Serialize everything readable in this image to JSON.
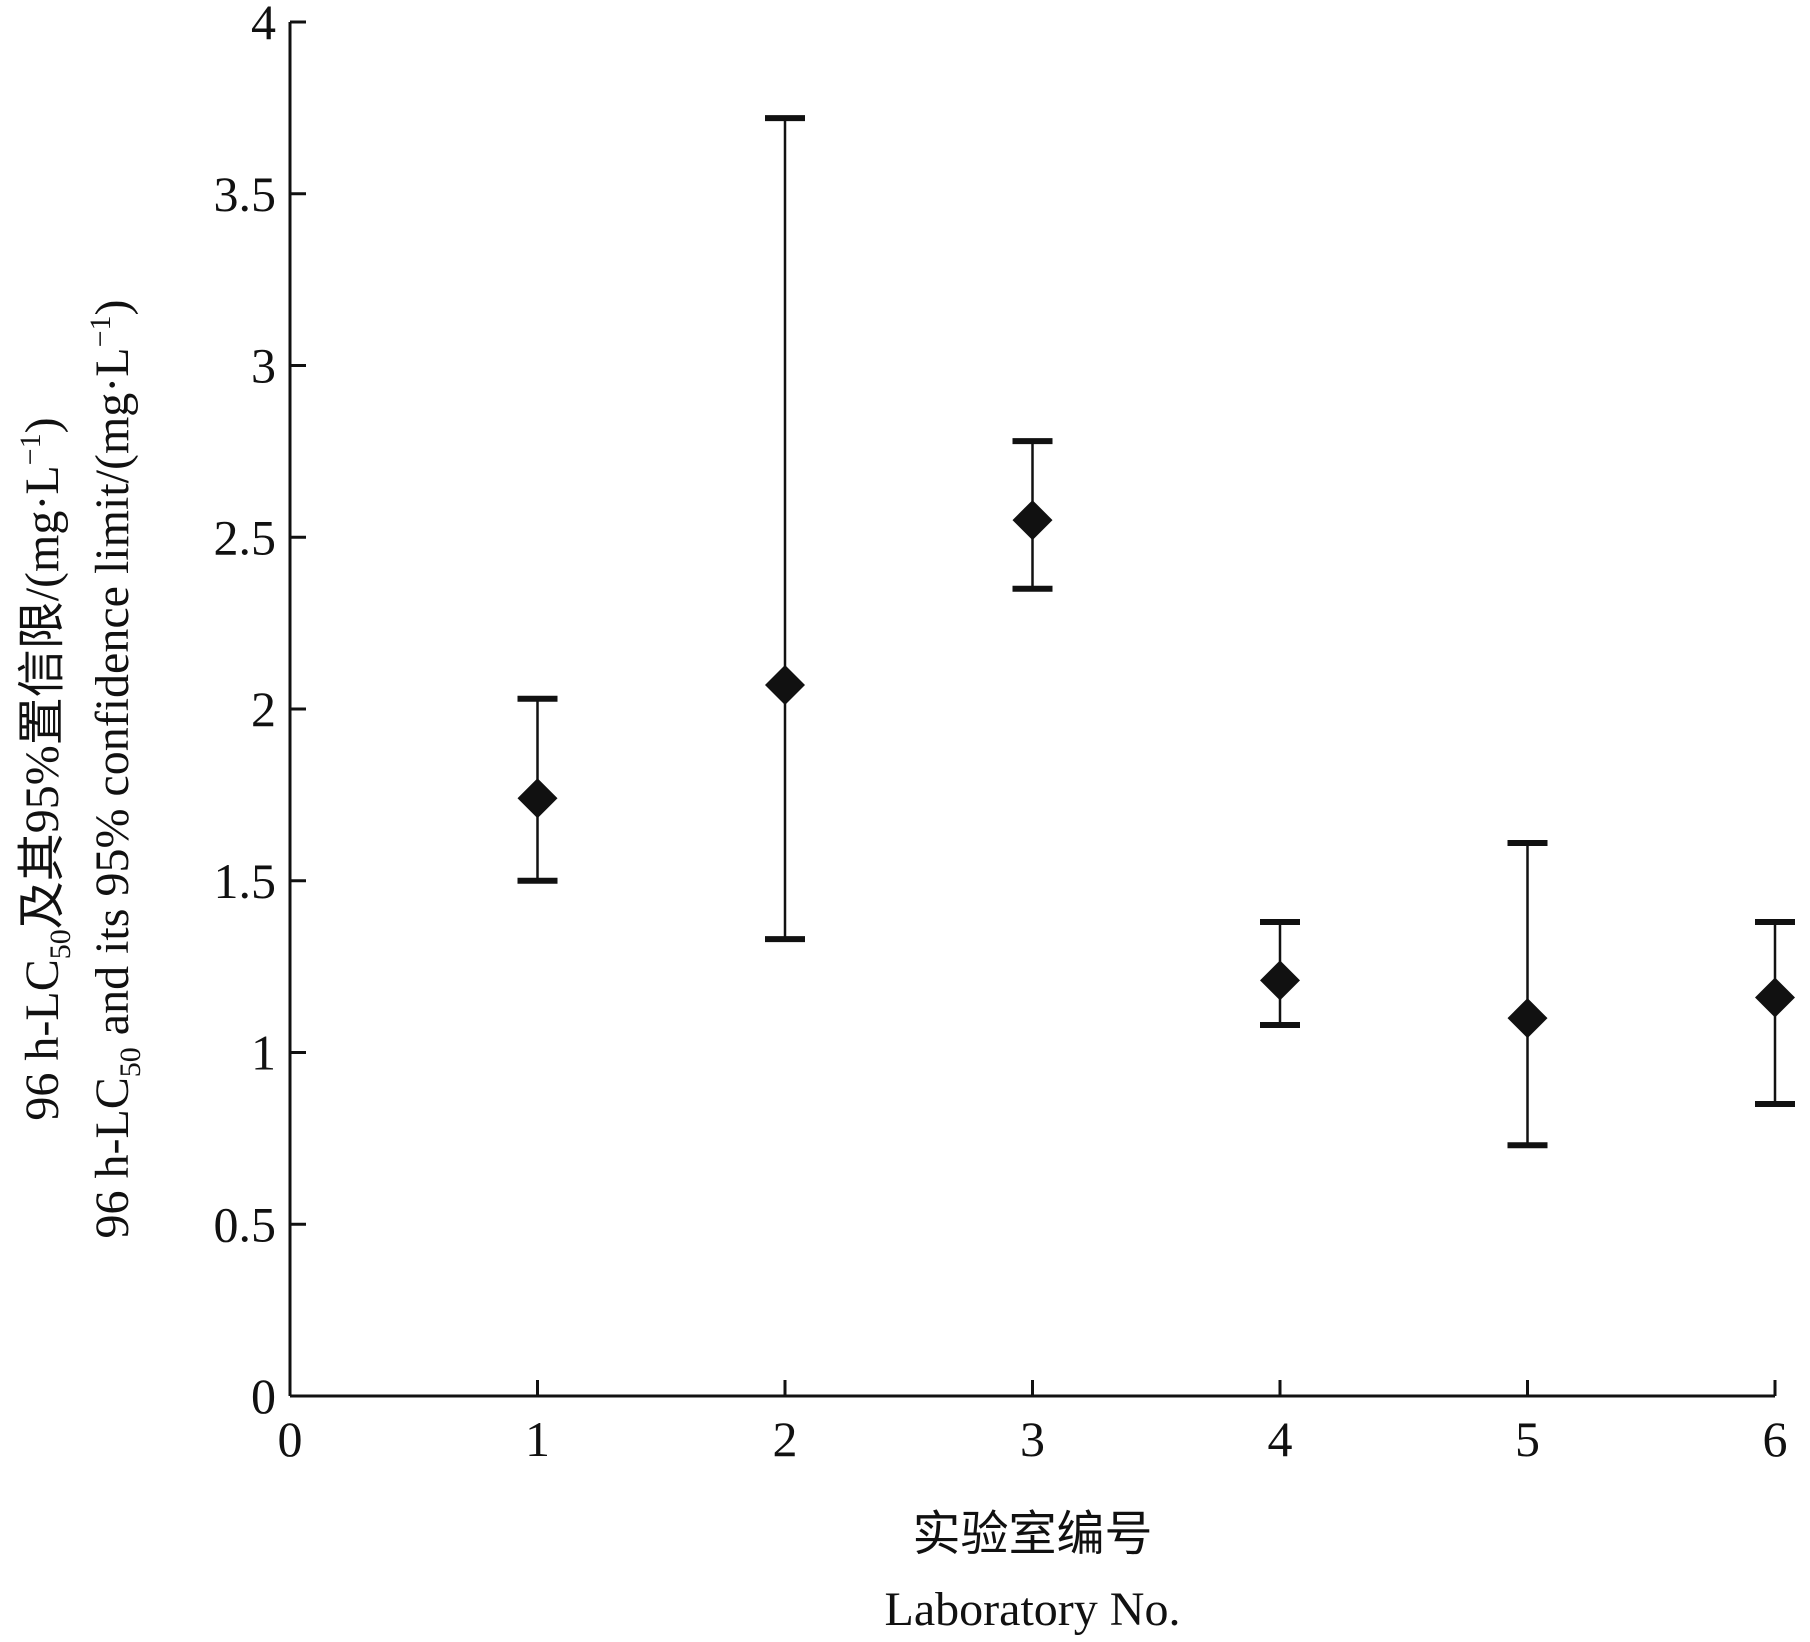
{
  "chart_data": {
    "type": "scatter",
    "x": [
      1,
      2,
      3,
      4,
      5,
      6
    ],
    "y": [
      1.74,
      2.07,
      2.55,
      1.21,
      1.1,
      1.16
    ],
    "error_lower": [
      1.5,
      1.33,
      2.35,
      1.08,
      0.73,
      0.85
    ],
    "error_upper": [
      2.03,
      3.72,
      2.78,
      1.38,
      1.61,
      1.38
    ],
    "xlim": [
      0,
      6
    ],
    "ylim": [
      0,
      4
    ],
    "xticks": [
      "0",
      "1",
      "2",
      "3",
      "4",
      "5",
      "6"
    ],
    "yticks": [
      "0",
      "0.5",
      "1",
      "1.5",
      "2",
      "2.5",
      "3",
      "3.5",
      "4"
    ],
    "xlabel_cn": "实验室编号",
    "xlabel_en": "Laboratory No.",
    "ylabel_cn": "96 h-LC50及其95%置信限/(mg·L−1)",
    "ylabel_en": "96 h-LC50 and its 95% confidence limit/(mg·L−1)",
    "marker": "diamond",
    "grid": false,
    "legend": "none"
  }
}
